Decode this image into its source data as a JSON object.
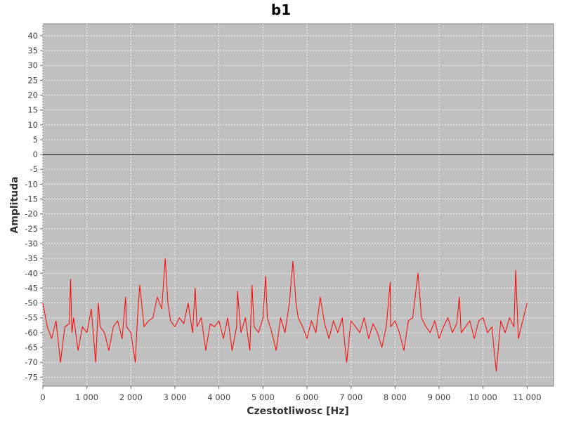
{
  "chart_data": {
    "type": "line",
    "title": "b1",
    "xlabel": "Czestotliwosc [Hz]",
    "ylabel": "Amplituda",
    "xlim": [
      0,
      11600
    ],
    "ylim": [
      -78,
      44
    ],
    "grid": true,
    "background_color": "#c0c0c0",
    "x_ticks": [
      {
        "value": 0,
        "label": "0"
      },
      {
        "value": 1000,
        "label": "1 000"
      },
      {
        "value": 2000,
        "label": "2 000"
      },
      {
        "value": 3000,
        "label": "3 000"
      },
      {
        "value": 4000,
        "label": "4 000"
      },
      {
        "value": 5000,
        "label": "5 000"
      },
      {
        "value": 6000,
        "label": "6 000"
      },
      {
        "value": 7000,
        "label": "7 000"
      },
      {
        "value": 8000,
        "label": "8 000"
      },
      {
        "value": 9000,
        "label": "9 000"
      },
      {
        "value": 10000,
        "label": "10 000"
      },
      {
        "value": 11000,
        "label": "11 000"
      }
    ],
    "y_ticks": [
      {
        "value": 40,
        "label": "40"
      },
      {
        "value": 35,
        "label": "35"
      },
      {
        "value": 30,
        "label": "30"
      },
      {
        "value": 25,
        "label": "25"
      },
      {
        "value": 20,
        "label": "20"
      },
      {
        "value": 15,
        "label": "15"
      },
      {
        "value": 10,
        "label": "10"
      },
      {
        "value": 5,
        "label": "5"
      },
      {
        "value": 0,
        "label": "0"
      },
      {
        "value": -5,
        "label": "-5"
      },
      {
        "value": -10,
        "label": "-10"
      },
      {
        "value": -15,
        "label": "-15"
      },
      {
        "value": -20,
        "label": "-20"
      },
      {
        "value": -25,
        "label": "-25"
      },
      {
        "value": -30,
        "label": "-30"
      },
      {
        "value": -35,
        "label": "-35"
      },
      {
        "value": -40,
        "label": "-40"
      },
      {
        "value": -45,
        "label": "-45"
      },
      {
        "value": -50,
        "label": "-50"
      },
      {
        "value": -55,
        "label": "-55"
      },
      {
        "value": -60,
        "label": "-60"
      },
      {
        "value": -65,
        "label": "-65"
      },
      {
        "value": -70,
        "label": "-70"
      },
      {
        "value": -75,
        "label": "-75"
      }
    ],
    "zero_line": 0,
    "series": [
      {
        "color": "#ff0000",
        "x": [
          0,
          100,
          200,
          300,
          400,
          500,
          600,
          630,
          660,
          700,
          800,
          900,
          1000,
          1100,
          1200,
          1260,
          1300,
          1400,
          1500,
          1600,
          1700,
          1800,
          1880,
          1900,
          2000,
          2100,
          2150,
          2200,
          2300,
          2400,
          2500,
          2600,
          2700,
          2780,
          2840,
          2900,
          3000,
          3100,
          3200,
          3300,
          3400,
          3460,
          3500,
          3600,
          3700,
          3800,
          3900,
          4000,
          4100,
          4200,
          4300,
          4400,
          4420,
          4500,
          4600,
          4700,
          4750,
          4800,
          4900,
          5000,
          5060,
          5100,
          5200,
          5300,
          5400,
          5500,
          5600,
          5680,
          5750,
          5800,
          5900,
          6000,
          6100,
          6200,
          6300,
          6400,
          6500,
          6600,
          6700,
          6800,
          6900,
          7000,
          7100,
          7200,
          7300,
          7400,
          7500,
          7600,
          7700,
          7800,
          7890,
          7900,
          8000,
          8100,
          8200,
          8300,
          8400,
          8520,
          8600,
          8700,
          8800,
          8900,
          9000,
          9100,
          9200,
          9300,
          9400,
          9460,
          9500,
          9600,
          9700,
          9800,
          9900,
          10000,
          10100,
          10200,
          10250,
          10300,
          10400,
          10500,
          10600,
          10700,
          10740,
          10800,
          10900,
          11000
        ],
        "values": [
          -50,
          -58,
          -62,
          -56,
          -70,
          -58,
          -57,
          -42,
          -60,
          -55,
          -66,
          -58,
          -60,
          -52,
          -70,
          -50,
          -58,
          -60,
          -66,
          -58,
          -56,
          -62,
          -48,
          -58,
          -60,
          -70,
          -55,
          -44,
          -58,
          -56,
          -55,
          -48,
          -52,
          -35,
          -50,
          -56,
          -58,
          -55,
          -57,
          -50,
          -60,
          -45,
          -58,
          -55,
          -66,
          -57,
          -58,
          -56,
          -62,
          -55,
          -66,
          -58,
          -46,
          -60,
          -55,
          -66,
          -44,
          -58,
          -60,
          -55,
          -41,
          -55,
          -60,
          -66,
          -55,
          -60,
          -50,
          -36,
          -50,
          -55,
          -58,
          -62,
          -56,
          -60,
          -48,
          -57,
          -62,
          -56,
          -60,
          -55,
          -70,
          -56,
          -58,
          -60,
          -55,
          -62,
          -57,
          -60,
          -65,
          -58,
          -43,
          -58,
          -56,
          -60,
          -66,
          -56,
          -55,
          -40,
          -55,
          -58,
          -60,
          -56,
          -62,
          -58,
          -55,
          -60,
          -57,
          -48,
          -60,
          -58,
          -56,
          -62,
          -56,
          -55,
          -60,
          -58,
          -66,
          -73,
          -56,
          -60,
          -55,
          -58,
          -39,
          -62,
          -56,
          -50
        ]
      }
    ]
  }
}
